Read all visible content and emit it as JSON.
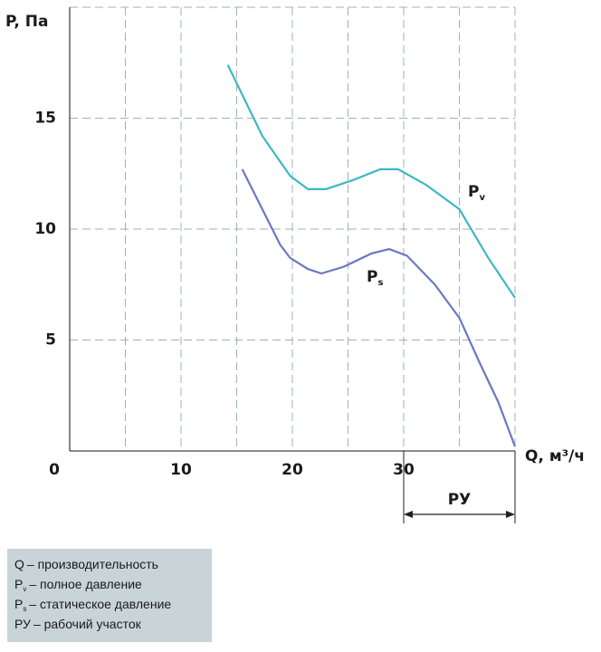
{
  "chart_data": {
    "type": "line",
    "ylabel": "P, Па",
    "xlabel": "Q, м³/ч",
    "xlim": [
      0,
      40
    ],
    "ylim": [
      0,
      20
    ],
    "xticks": [
      0,
      10,
      20,
      30
    ],
    "yticks": [
      5,
      10,
      15
    ],
    "xgrid": [
      5,
      10,
      15,
      20,
      25,
      30,
      35,
      40
    ],
    "ygrid": [
      5,
      10,
      15,
      20
    ],
    "series": [
      {
        "name": "P",
        "subscript": "v",
        "color": "#3bb8c3",
        "x": [
          14.2,
          17.3,
          19.8,
          21.4,
          23,
          25.4,
          27.9,
          29.5,
          32,
          35,
          37.6,
          40
        ],
        "values": [
          17.4,
          14.2,
          12.4,
          11.8,
          11.8,
          12.2,
          12.7,
          12.7,
          12.0,
          10.9,
          8.7,
          6.9
        ]
      },
      {
        "name": "P",
        "subscript": "s",
        "color": "#6a79c0",
        "x": [
          15.5,
          17.3,
          18.9,
          19.8,
          21.4,
          22.6,
          24.6,
          27.1,
          28.7,
          30.3,
          32.8,
          35,
          36.8,
          38.5,
          40
        ],
        "values": [
          12.7,
          10.9,
          9.3,
          8.7,
          8.2,
          8.0,
          8.3,
          8.9,
          9.1,
          8.8,
          7.5,
          6.0,
          4.0,
          2.2,
          0.2
        ]
      }
    ],
    "range": {
      "label": "РУ",
      "from": 30,
      "to": 40
    },
    "legend": [
      {
        "symbol": "Q",
        "text": "– производительность"
      },
      {
        "symbol": "P",
        "sub": "v",
        "text": "– полное давление"
      },
      {
        "symbol": "P",
        "sub": "s",
        "text": "– статическое давление"
      },
      {
        "symbol": "РУ",
        "text": "– рабочий участок"
      }
    ]
  }
}
